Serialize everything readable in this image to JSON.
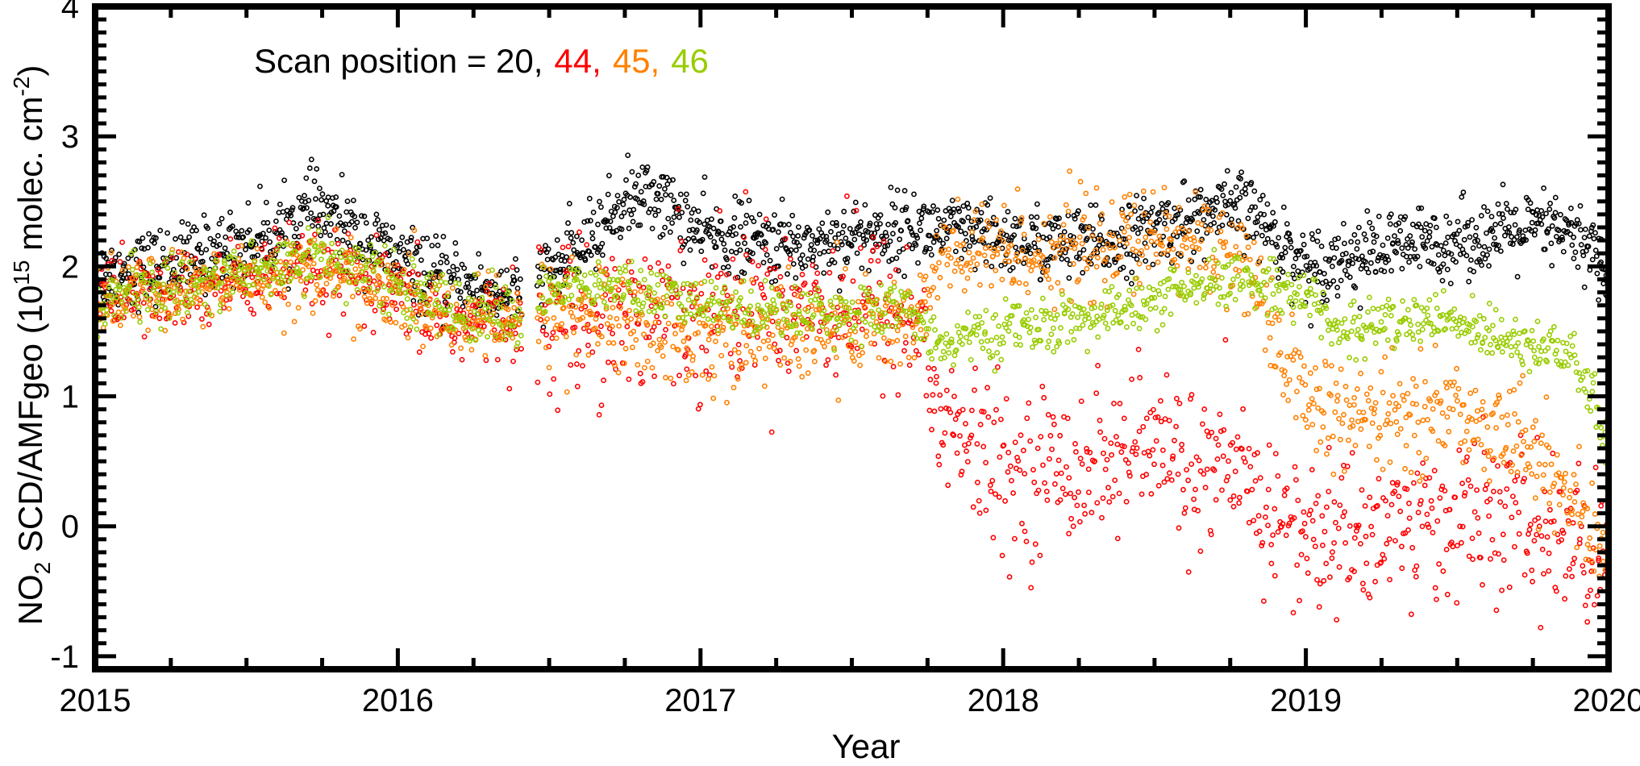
{
  "chart_data": {
    "type": "scatter",
    "title": "",
    "xlabel": "Year",
    "ylabel": {
      "prefix": "NO",
      "subscript": "2",
      "middle": " SCD/AMFgeo (10",
      "superscript": "15",
      "middle2": " molec. cm",
      "superscript2": "-2",
      "suffix": ")"
    },
    "xlim": [
      2015.0,
      2020.0
    ],
    "ylim": [
      -1.1,
      4.0
    ],
    "xticks": [
      "2015",
      "2016",
      "2017",
      "2018",
      "2019",
      "2020"
    ],
    "xtick_values": [
      2015,
      2016,
      2017,
      2018,
      2019,
      2020
    ],
    "yticks": [
      "-1",
      "0",
      "1",
      "2",
      "3",
      "4"
    ],
    "ytick_values": [
      -1,
      0,
      1,
      2,
      3,
      4
    ],
    "grid": false,
    "legend": {
      "placement": "top-left",
      "prefix": "Scan position = ",
      "entries": [
        {
          "text": "20,",
          "color": "#000000"
        },
        {
          "text": "44,",
          "color": "#ff0000"
        },
        {
          "text": "45,",
          "color": "#ff8000"
        },
        {
          "text": "46",
          "color": "#99cc00"
        }
      ]
    },
    "data_gap": [
      2016.41,
      2016.46
    ],
    "series": [
      {
        "name": "20",
        "color": "#000000",
        "marker": "open-circle",
        "points_per_day": 1,
        "segments": [
          {
            "x": [
              2015.0,
              2015.3,
              2015.6,
              2015.72,
              2015.9,
              2016.1,
              2016.41
            ],
            "y": [
              1.92,
              2.05,
              2.25,
              2.45,
              2.2,
              1.92,
              1.75
            ],
            "spread": 0.14
          },
          {
            "x": [
              2016.46,
              2016.6,
              2016.75,
              2016.85,
              2017.0,
              2017.3,
              2017.7,
              2018.0,
              2018.3,
              2018.6,
              2018.8,
              2019.0,
              2019.3,
              2019.5,
              2019.8,
              2019.95,
              2020.0
            ],
            "y": [
              1.9,
              2.1,
              2.5,
              2.55,
              2.25,
              2.15,
              2.3,
              2.2,
              2.15,
              2.35,
              2.45,
              2.0,
              2.15,
              2.2,
              2.3,
              2.15,
              1.9
            ],
            "spread": 0.14
          }
        ]
      },
      {
        "name": "44",
        "color": "#ff0000",
        "marker": "open-circle",
        "points_per_day": 0.75,
        "segments": [
          {
            "x": [
              2015.0,
              2015.3,
              2015.6,
              2015.8,
              2016.0,
              2016.2,
              2016.41
            ],
            "y": [
              1.78,
              1.8,
              1.95,
              1.95,
              1.75,
              1.55,
              1.6
            ],
            "spread": 0.16
          },
          {
            "x": [
              2016.46,
              2016.7,
              2017.0,
              2017.3,
              2017.6,
              2017.72,
              2017.8,
              2018.0,
              2018.3,
              2018.5,
              2018.8,
              2019.0,
              2019.3,
              2019.6,
              2019.85,
              2020.0
            ],
            "y": [
              1.6,
              1.65,
              1.7,
              1.75,
              1.7,
              1.55,
              0.8,
              0.4,
              0.5,
              0.6,
              0.3,
              -0.1,
              0.0,
              0.1,
              -0.1,
              -0.25
            ],
            "spread": 0.3
          }
        ]
      },
      {
        "name": "45",
        "color": "#ff8000",
        "marker": "open-circle",
        "points_per_day": 0.75,
        "segments": [
          {
            "x": [
              2015.0,
              2015.3,
              2015.6,
              2015.8,
              2016.0,
              2016.2,
              2016.41
            ],
            "y": [
              1.75,
              1.8,
              1.95,
              1.95,
              1.75,
              1.6,
              1.55
            ],
            "spread": 0.15
          },
          {
            "x": [
              2016.46,
              2016.7,
              2017.0,
              2017.3,
              2017.6,
              2017.72,
              2017.8,
              2018.0,
              2018.3,
              2018.6,
              2018.8,
              2018.9,
              2019.1,
              2019.4,
              2019.7,
              2019.9,
              2020.0
            ],
            "y": [
              1.7,
              1.6,
              1.45,
              1.5,
              1.55,
              1.6,
              2.05,
              2.1,
              2.15,
              2.2,
              2.1,
              1.3,
              0.8,
              0.9,
              0.75,
              0.1,
              -0.25
            ],
            "spread": 0.2
          }
        ]
      },
      {
        "name": "46",
        "color": "#99cc00",
        "marker": "open-circle",
        "points_per_day": 0.75,
        "segments": [
          {
            "x": [
              2015.0,
              2015.3,
              2015.6,
              2015.75,
              2016.0,
              2016.2,
              2016.41
            ],
            "y": [
              1.75,
              1.85,
              2.0,
              2.1,
              1.85,
              1.65,
              1.62
            ],
            "spread": 0.12
          },
          {
            "x": [
              2016.46,
              2016.7,
              2017.0,
              2017.3,
              2017.7,
              2017.8,
              2018.0,
              2018.3,
              2018.6,
              2018.8,
              2019.0,
              2019.1,
              2019.4,
              2019.7,
              2019.85,
              2019.95,
              2020.0
            ],
            "y": [
              1.8,
              1.85,
              1.7,
              1.65,
              1.65,
              1.4,
              1.5,
              1.6,
              1.8,
              1.9,
              1.8,
              1.5,
              1.6,
              1.45,
              1.35,
              1.0,
              0.5
            ],
            "spread": 0.1
          }
        ]
      }
    ]
  }
}
